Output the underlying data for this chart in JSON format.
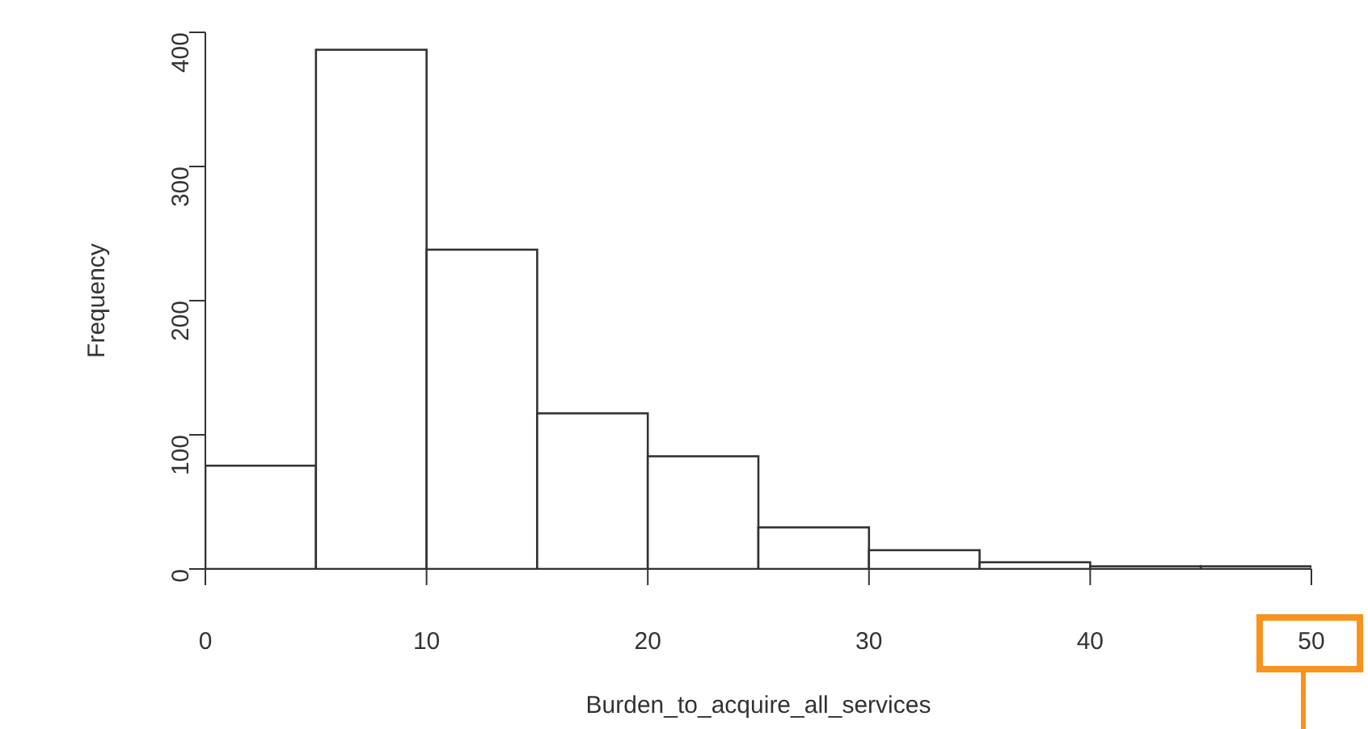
{
  "chart_data": {
    "type": "histogram",
    "xlabel": "Burden_to_acquire_all_services",
    "ylabel": "Frequency",
    "bins": [
      0,
      5,
      10,
      15,
      20,
      25,
      30,
      35,
      40,
      45,
      50
    ],
    "values": [
      77,
      387,
      238,
      116,
      84,
      31,
      14,
      5,
      2,
      2
    ],
    "color": "#ffffff",
    "xlim": [
      0,
      50
    ],
    "xticks": [
      0,
      10,
      20,
      30,
      40,
      50
    ],
    "ylim": [
      0,
      400
    ],
    "yticks": [
      0,
      100,
      200,
      300,
      400
    ],
    "grid": false,
    "legend": false
  }
}
